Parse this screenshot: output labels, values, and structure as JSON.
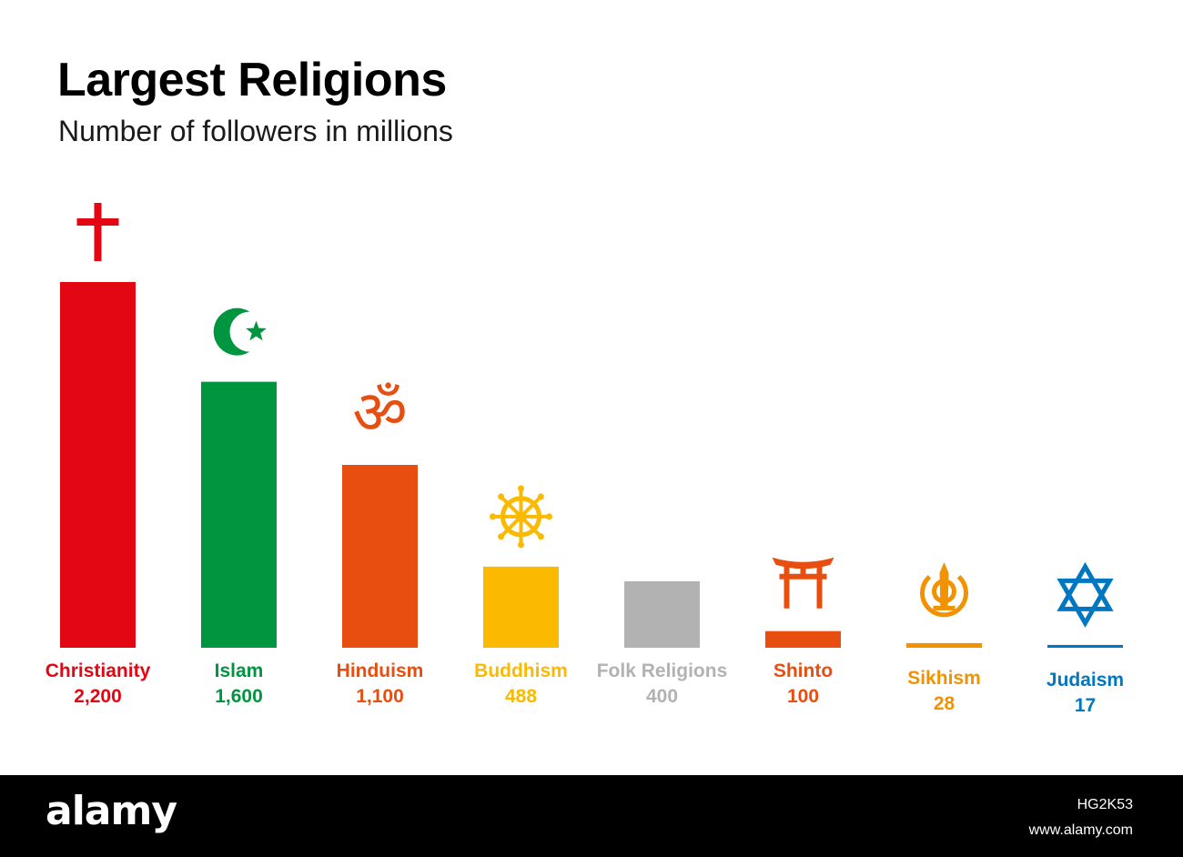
{
  "chart_data": {
    "type": "bar",
    "title": "Largest Religions",
    "subtitle": "Number of followers in millions",
    "categories": [
      "Christianity",
      "Islam",
      "Hinduism",
      "Buddhism",
      "Folk Religions",
      "Shinto",
      "Sikhism",
      "Judaism"
    ],
    "values": [
      2200,
      1600,
      1100,
      488,
      400,
      100,
      28,
      17
    ],
    "value_labels": [
      "2,200",
      "1,600",
      "1,100",
      "488",
      "400",
      "100",
      "28",
      "17"
    ],
    "colors": [
      "#e30613",
      "#009640",
      "#e84e0f",
      "#fbba00",
      "#b2b2b2",
      "#e84e0f",
      "#f39200",
      "#0077c0"
    ],
    "icons": [
      "latin-cross-icon",
      "crescent-star-icon",
      "om-icon",
      "dharma-wheel-icon",
      "",
      "torii-gate-icon",
      "khanda-icon",
      "star-of-david-icon"
    ],
    "ylim": [
      0,
      2200
    ],
    "grid": false,
    "legend": "none"
  },
  "footer": {
    "logo": "alamy",
    "image_id": "HG2K53",
    "site": "www.alamy.com"
  }
}
